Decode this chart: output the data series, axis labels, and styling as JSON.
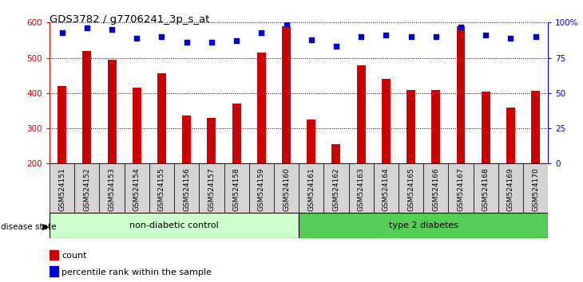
{
  "title": "GDS3782 / g7706241_3p_s_at",
  "samples": [
    "GSM524151",
    "GSM524152",
    "GSM524153",
    "GSM524154",
    "GSM524155",
    "GSM524156",
    "GSM524157",
    "GSM524158",
    "GSM524159",
    "GSM524160",
    "GSM524161",
    "GSM524162",
    "GSM524163",
    "GSM524164",
    "GSM524165",
    "GSM524166",
    "GSM524167",
    "GSM524168",
    "GSM524169",
    "GSM524170"
  ],
  "counts": [
    420,
    520,
    495,
    415,
    457,
    337,
    330,
    370,
    515,
    590,
    325,
    255,
    478,
    440,
    408,
    408,
    590,
    405,
    360,
    407
  ],
  "percentile_ranks": [
    93,
    96,
    95,
    89,
    90,
    86,
    86,
    87,
    93,
    99,
    88,
    83,
    90,
    91,
    90,
    90,
    97,
    91,
    89,
    90
  ],
  "group1_label": "non-diabetic control",
  "group2_label": "type 2 diabetes",
  "group1_count": 10,
  "group2_count": 10,
  "ymin": 200,
  "ymax": 600,
  "yticks_left": [
    200,
    300,
    400,
    500,
    600
  ],
  "right_yticks": [
    0,
    25,
    50,
    75,
    100
  ],
  "right_yticklabels": [
    "0",
    "25",
    "50",
    "75",
    "100%"
  ],
  "bar_color": "#cc0000",
  "dot_color": "#0000cc",
  "group1_color": "#ccffcc",
  "group2_color": "#55cc55",
  "bar_width": 0.35,
  "legend_count_label": "count",
  "legend_pct_label": "percentile rank within the sample",
  "xtick_bg": "#d4d4d4"
}
